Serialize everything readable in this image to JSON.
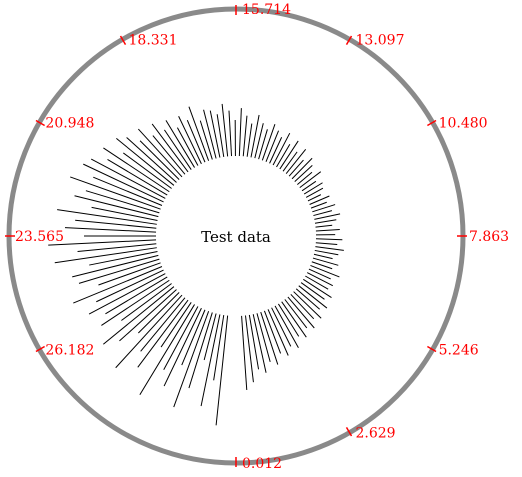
{
  "chart_data": {
    "type": "radial-bar",
    "center_label": "Test data",
    "radial_range": [
      0,
      1
    ],
    "angular_ticks": [
      {
        "label": "0.012",
        "angle_deg": 90
      },
      {
        "label": "2.629",
        "angle_deg": 60
      },
      {
        "label": "5.246",
        "angle_deg": 30
      },
      {
        "label": "7.863",
        "angle_deg": 0
      },
      {
        "label": "10.480",
        "angle_deg": -30
      },
      {
        "label": "13.097",
        "angle_deg": -60
      },
      {
        "label": "15.714",
        "angle_deg": -90
      },
      {
        "label": "18.331",
        "angle_deg": -120
      },
      {
        "label": "20.948",
        "angle_deg": -150
      },
      {
        "label": "23.565",
        "angle_deg": 180
      },
      {
        "label": "26.182",
        "angle_deg": 150
      }
    ],
    "spoke_start_deg": 96,
    "spoke_step_deg": 2.8,
    "values": [
      0.92,
      0.55,
      0.78,
      0.4,
      0.66,
      0.85,
      0.5,
      0.72,
      0.6,
      0.88,
      0.45,
      0.7,
      0.58,
      0.82,
      0.48,
      0.64,
      0.76,
      0.52,
      0.68,
      0.6,
      0.72,
      0.62,
      0.8,
      0.55,
      0.7,
      0.74,
      0.58,
      0.86,
      0.66,
      0.9,
      0.6,
      0.76,
      0.68,
      0.84,
      0.56,
      0.72,
      0.64,
      0.8,
      0.62,
      0.74,
      0.7,
      0.58,
      0.66,
      0.5,
      0.62,
      0.56,
      0.46,
      0.54,
      0.42,
      0.5,
      0.4,
      0.46,
      0.36,
      0.44,
      0.38,
      0.48,
      0.34,
      0.42,
      0.4,
      0.36,
      0.44,
      0.38,
      0.3,
      0.4,
      0.34,
      0.28,
      0.36,
      0.3,
      0.26,
      0.32,
      0.28,
      0.24,
      0.3,
      0.22,
      0.28,
      0.2,
      0.26,
      0.18,
      0.24,
      0.2,
      0.16,
      0.22,
      0.14,
      0.18,
      0.16,
      0.12,
      0.18,
      0.14,
      0.2,
      0.16,
      0.22,
      0.18,
      0.14,
      0.2,
      0.16,
      0.22,
      0.18,
      0.24,
      0.2,
      0.16,
      0.22,
      0.18,
      0.26,
      0.2,
      0.24,
      0.22,
      0.28,
      0.24,
      0.3,
      0.26,
      0.32,
      0.28,
      0.34,
      0.3,
      0.36,
      0.32,
      0.4,
      0.36,
      0.42,
      0.38,
      0.46,
      0.42,
      0.5,
      0.46,
      0.56,
      0.62
    ],
    "colors": {
      "spokes": "#000000",
      "ring": "#8a8a8a",
      "tick_labels": "#ff0000",
      "background": "#ffffff"
    }
  }
}
